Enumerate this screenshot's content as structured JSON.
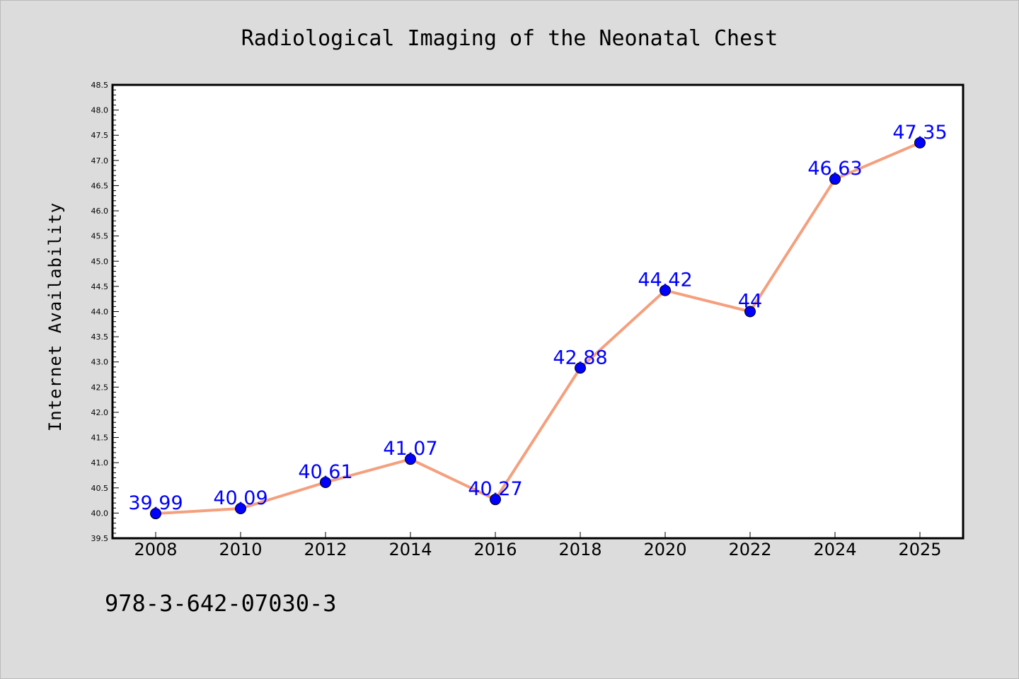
{
  "colors": {
    "background": "#dcdcdc",
    "plot_background": "#ffffff",
    "line": "#f4a07e",
    "marker": "#0000ff",
    "data_label": "#0000ff"
  },
  "footer_text": "978-3-642-07030-3",
  "chart_data": {
    "type": "line",
    "title": "Radiological Imaging of the Neonatal Chest",
    "xlabel": "",
    "ylabel": "Internet Availability",
    "categories": [
      "2008",
      "2010",
      "2012",
      "2014",
      "2016",
      "2018",
      "2020",
      "2022",
      "2024",
      "2025"
    ],
    "series": [
      {
        "values": [
          39.99,
          40.09,
          40.61,
          41.07,
          40.27,
          42.88,
          44.42,
          44,
          46.63,
          47.35
        ],
        "labels": [
          "39.99",
          "40.09",
          "40.61",
          "41.07",
          "40.27",
          "42.88",
          "44.42",
          "44",
          "46.63",
          "47.35"
        ]
      }
    ],
    "ylim": [
      39.5,
      48.5
    ],
    "yticks": [
      "39.5",
      "40.0",
      "40.5",
      "41.0",
      "41.5",
      "42.0",
      "42.5",
      "43.0",
      "43.5",
      "44.0",
      "44.5",
      "45.0",
      "45.5",
      "46.0",
      "46.5",
      "47.0",
      "47.5",
      "48.0",
      "48.5"
    ],
    "grid": false,
    "legend": "none"
  }
}
